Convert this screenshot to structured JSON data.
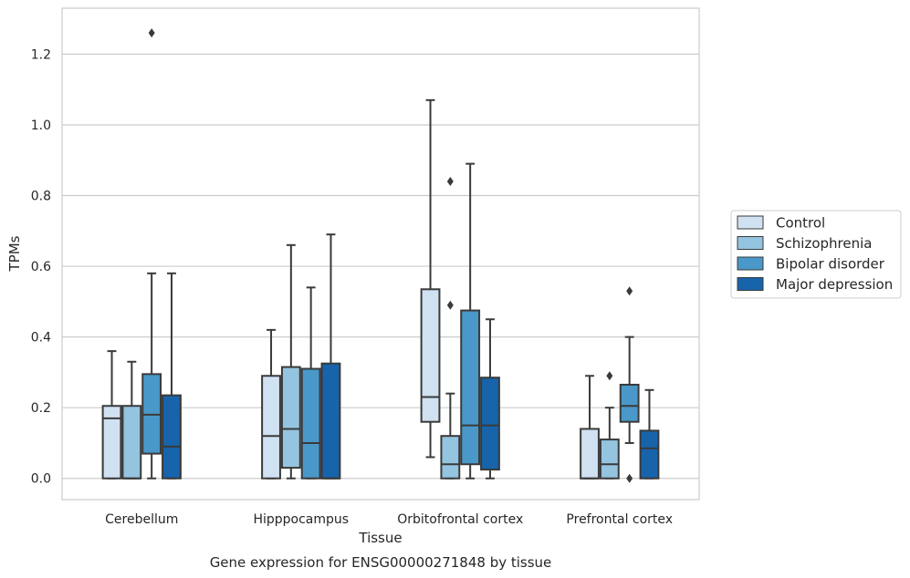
{
  "chart_data": {
    "type": "boxplot",
    "title": "",
    "xlabel": "Tissue",
    "ylabel": "TPMs",
    "caption": "Gene expression for ENSG00000271848 by tissue",
    "ylim": [
      -0.06,
      1.33
    ],
    "yticks": [
      0.0,
      0.2,
      0.4,
      0.6,
      0.8,
      1.0,
      1.2
    ],
    "ytick_labels": [
      "0.0",
      "0.2",
      "0.4",
      "0.6",
      "0.8",
      "1.0",
      "1.2"
    ],
    "grid": "horizontal",
    "legend_position": "right",
    "categories": [
      "Cerebellum",
      "Hipppocampus",
      "Orbitofrontal cortex",
      "Prefrontal cortex"
    ],
    "series": [
      {
        "name": "Control",
        "color": "#d0e1f2",
        "boxes": [
          {
            "whislo": 0.0,
            "q1": 0.0,
            "med": 0.17,
            "q3": 0.205,
            "whishi": 0.36,
            "fliers": []
          },
          {
            "whislo": 0.0,
            "q1": 0.0,
            "med": 0.12,
            "q3": 0.29,
            "whishi": 0.42,
            "fliers": []
          },
          {
            "whislo": 0.06,
            "q1": 0.16,
            "med": 0.23,
            "q3": 0.535,
            "whishi": 1.07,
            "fliers": []
          },
          {
            "whislo": 0.0,
            "q1": 0.0,
            "med": 0.0,
            "q3": 0.14,
            "whishi": 0.29,
            "fliers": []
          }
        ]
      },
      {
        "name": "Schizophrenia",
        "color": "#94c4df",
        "boxes": [
          {
            "whislo": 0.0,
            "q1": 0.0,
            "med": 0.0,
            "q3": 0.205,
            "whishi": 0.33,
            "fliers": []
          },
          {
            "whislo": 0.0,
            "q1": 0.03,
            "med": 0.14,
            "q3": 0.315,
            "whishi": 0.66,
            "fliers": []
          },
          {
            "whislo": 0.0,
            "q1": 0.0,
            "med": 0.04,
            "q3": 0.12,
            "whishi": 0.24,
            "fliers": [
              0.49,
              0.84
            ]
          },
          {
            "whislo": 0.0,
            "q1": 0.0,
            "med": 0.04,
            "q3": 0.11,
            "whishi": 0.2,
            "fliers": [
              0.29
            ]
          }
        ]
      },
      {
        "name": "Bipolar disorder",
        "color": "#4a98c9",
        "boxes": [
          {
            "whislo": 0.0,
            "q1": 0.07,
            "med": 0.18,
            "q3": 0.295,
            "whishi": 0.58,
            "fliers": [
              1.26
            ]
          },
          {
            "whislo": 0.0,
            "q1": 0.0,
            "med": 0.1,
            "q3": 0.31,
            "whishi": 0.54,
            "fliers": []
          },
          {
            "whislo": 0.0,
            "q1": 0.04,
            "med": 0.15,
            "q3": 0.475,
            "whishi": 0.89,
            "fliers": []
          },
          {
            "whislo": 0.1,
            "q1": 0.16,
            "med": 0.205,
            "q3": 0.265,
            "whishi": 0.4,
            "fliers": [
              0.53,
              0.0
            ]
          }
        ]
      },
      {
        "name": "Major depression",
        "color": "#1764ab",
        "boxes": [
          {
            "whislo": 0.0,
            "q1": 0.0,
            "med": 0.09,
            "q3": 0.235,
            "whishi": 0.58,
            "fliers": []
          },
          {
            "whislo": 0.0,
            "q1": 0.0,
            "med": 0.0,
            "q3": 0.325,
            "whishi": 0.69,
            "fliers": []
          },
          {
            "whislo": 0.0,
            "q1": 0.025,
            "med": 0.15,
            "q3": 0.285,
            "whishi": 0.45,
            "fliers": []
          },
          {
            "whislo": 0.0,
            "q1": 0.0,
            "med": 0.085,
            "q3": 0.135,
            "whishi": 0.25,
            "fliers": []
          }
        ]
      }
    ]
  },
  "colors": {
    "box_edge": "#3a3a3a",
    "grid": "#cccccc",
    "frame": "#cccccc"
  }
}
